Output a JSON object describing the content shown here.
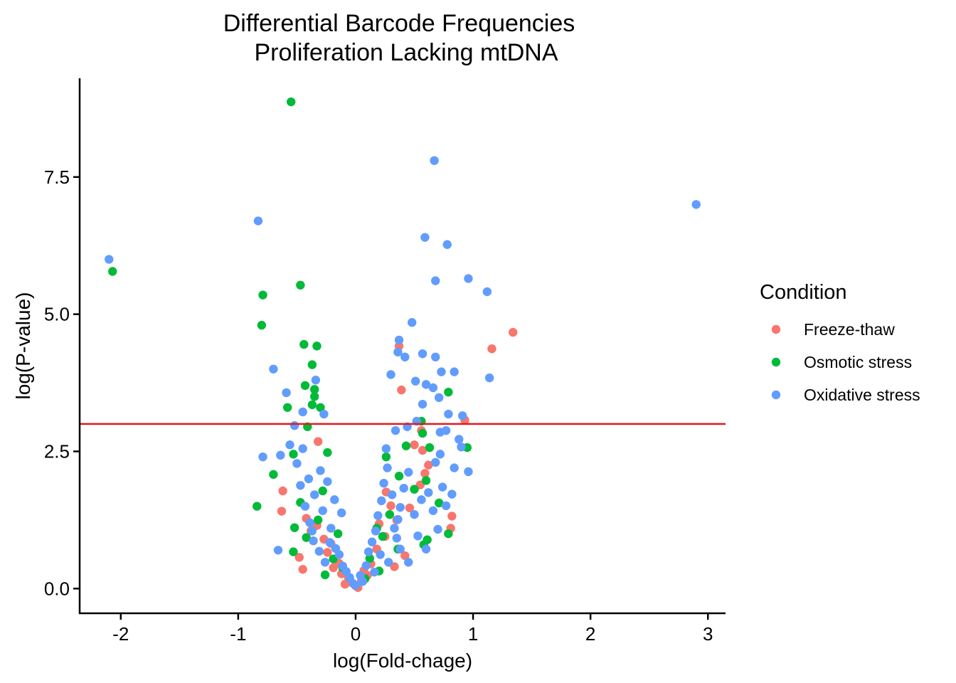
{
  "chart_data": {
    "type": "scatter",
    "title_line1": "Differential Barcode Frequencies",
    "title_line2": "Proliferation Lacking mtDNA",
    "xlabel": "log(Fold-chage)",
    "ylabel": "log(P-value)",
    "xlim": [
      -2.35,
      3.15
    ],
    "ylim": [
      -0.45,
      9.3
    ],
    "x_ticks": [
      -2,
      -1,
      0,
      1,
      2,
      3
    ],
    "x_tick_labels": [
      "-2",
      "-1",
      "0",
      "1",
      "2",
      "3"
    ],
    "y_ticks": [
      0,
      2.5,
      5,
      7.5
    ],
    "y_tick_labels": [
      "0.0",
      "2.5",
      "5.0",
      "7.5"
    ],
    "threshold_line": {
      "y": 3.0,
      "color": "#e41a1c"
    },
    "legend": {
      "title": "Condition",
      "position": "right"
    },
    "grid": false,
    "series": [
      {
        "name": "Freeze-thaw",
        "color": "#F8766D",
        "points": [
          [
            1.34,
            4.67
          ],
          [
            1.16,
            4.37
          ],
          [
            0.37,
            4.42
          ],
          [
            0.39,
            3.62
          ],
          [
            0.93,
            3.07
          ],
          [
            0.57,
            2.52
          ],
          [
            0.56,
            2.88
          ],
          [
            -0.32,
            2.68
          ],
          [
            0.5,
            2.62
          ],
          [
            0.62,
            2.25
          ],
          [
            0.82,
            1.32
          ],
          [
            0.81,
            1.1
          ],
          [
            -0.62,
            1.78
          ],
          [
            -0.63,
            1.41
          ],
          [
            -0.42,
            1.28
          ],
          [
            -0.48,
            0.57
          ],
          [
            0.59,
            2.1
          ],
          [
            0.26,
            1.76
          ],
          [
            0.3,
            1.51
          ],
          [
            0.2,
            1.18
          ],
          [
            -0.38,
            1.05
          ],
          [
            -0.27,
            0.9
          ],
          [
            -0.24,
            0.66
          ],
          [
            -0.14,
            0.46
          ],
          [
            -0.12,
            0.27
          ],
          [
            -0.06,
            0.19
          ],
          [
            0.05,
            0.16
          ],
          [
            0.1,
            0.24
          ],
          [
            0.13,
            0.45
          ],
          [
            0.18,
            0.72
          ],
          [
            0.25,
            0.95
          ],
          [
            0.35,
            1.25
          ],
          [
            -0.19,
            0.38
          ],
          [
            -0.09,
            0.08
          ],
          [
            0.02,
            0.02
          ],
          [
            0.0,
            0.05
          ],
          [
            -0.04,
            0.12
          ],
          [
            0.07,
            0.33
          ],
          [
            0.46,
            1.47
          ],
          [
            0.55,
            1.89
          ],
          [
            -0.33,
            1.15
          ],
          [
            -0.21,
            0.82
          ],
          [
            0.42,
            0.6
          ],
          [
            0.33,
            0.4
          ],
          [
            -0.45,
            0.35
          ]
        ]
      },
      {
        "name": "Osmotic stress",
        "color": "#00BA38",
        "points": [
          [
            -0.55,
            8.87
          ],
          [
            -2.07,
            5.78
          ],
          [
            -0.79,
            5.35
          ],
          [
            -0.8,
            4.8
          ],
          [
            -0.47,
            5.53
          ],
          [
            -0.44,
            4.45
          ],
          [
            -0.33,
            4.42
          ],
          [
            -0.37,
            4.08
          ],
          [
            -0.43,
            3.7
          ],
          [
            -0.35,
            3.63
          ],
          [
            -0.35,
            3.5
          ],
          [
            -0.37,
            3.35
          ],
          [
            -0.58,
            3.3
          ],
          [
            -0.3,
            3.3
          ],
          [
            0.79,
            3.58
          ],
          [
            0.56,
            3.05
          ],
          [
            0.57,
            2.83
          ],
          [
            0.95,
            2.57
          ],
          [
            0.63,
            2.57
          ],
          [
            -0.41,
            2.95
          ],
          [
            -0.53,
            2.45
          ],
          [
            -0.24,
            2.48
          ],
          [
            -0.7,
            2.08
          ],
          [
            -0.84,
            1.5
          ],
          [
            0.6,
            1.97
          ],
          [
            0.5,
            1.81
          ],
          [
            0.37,
            2.05
          ],
          [
            0.26,
            2.4
          ],
          [
            -0.47,
            1.57
          ],
          [
            -0.52,
            1.11
          ],
          [
            -0.53,
            0.67
          ],
          [
            -0.42,
            0.93
          ],
          [
            -0.19,
            0.54
          ],
          [
            -0.11,
            0.38
          ],
          [
            0.58,
            0.8
          ],
          [
            0.61,
            0.89
          ],
          [
            0.36,
            0.72
          ],
          [
            0.23,
            0.95
          ],
          [
            0.18,
            1.1
          ],
          [
            0.29,
            1.35
          ],
          [
            0.12,
            0.55
          ],
          [
            -0.28,
            1.78
          ],
          [
            -0.32,
            1.25
          ],
          [
            -0.15,
            1.0
          ],
          [
            0.43,
            2.6
          ],
          [
            0.71,
            1.56
          ],
          [
            0.79,
            1.0
          ],
          [
            -0.26,
            0.25
          ],
          [
            0.08,
            0.18
          ],
          [
            0.2,
            0.32
          ]
        ]
      },
      {
        "name": "Oxidative stress",
        "color": "#619CFF",
        "points": [
          [
            0.67,
            7.8
          ],
          [
            2.9,
            7.0
          ],
          [
            -0.83,
            6.7
          ],
          [
            -2.1,
            6.0
          ],
          [
            0.59,
            6.4
          ],
          [
            0.78,
            6.27
          ],
          [
            0.68,
            5.61
          ],
          [
            0.96,
            5.65
          ],
          [
            1.12,
            5.41
          ],
          [
            0.48,
            4.85
          ],
          [
            0.37,
            4.53
          ],
          [
            1.14,
            3.84
          ],
          [
            0.68,
            4.22
          ],
          [
            0.57,
            4.28
          ],
          [
            0.73,
            3.95
          ],
          [
            0.84,
            3.95
          ],
          [
            -0.7,
            4.0
          ],
          [
            -0.59,
            3.57
          ],
          [
            0.36,
            4.31
          ],
          [
            0.42,
            4.22
          ],
          [
            0.3,
            3.9
          ],
          [
            0.51,
            3.78
          ],
          [
            0.6,
            3.72
          ],
          [
            0.66,
            3.66
          ],
          [
            -0.34,
            3.8
          ],
          [
            -0.45,
            3.22
          ],
          [
            -0.27,
            3.18
          ],
          [
            0.71,
            3.48
          ],
          [
            0.79,
            3.18
          ],
          [
            0.91,
            3.15
          ],
          [
            0.57,
            3.36
          ],
          [
            -0.52,
            2.97
          ],
          [
            -0.56,
            2.62
          ],
          [
            -0.64,
            2.43
          ],
          [
            -0.79,
            2.4
          ],
          [
            0.88,
            2.72
          ],
          [
            0.9,
            2.58
          ],
          [
            0.96,
            2.13
          ],
          [
            0.72,
            2.85
          ],
          [
            0.68,
            2.3
          ],
          [
            0.77,
            2.88
          ],
          [
            -0.66,
            0.7
          ],
          [
            -0.35,
            1.71
          ],
          [
            -0.4,
            2.0
          ],
          [
            -0.43,
            1.5
          ],
          [
            -0.39,
            1.2
          ],
          [
            -0.36,
            0.87
          ],
          [
            -0.31,
            0.68
          ],
          [
            -0.28,
            1.42
          ],
          [
            -0.26,
            0.48
          ],
          [
            -0.24,
            1.95
          ],
          [
            -0.21,
            1.1
          ],
          [
            -0.17,
            0.73
          ],
          [
            -0.14,
            0.62
          ],
          [
            -0.11,
            0.41
          ],
          [
            -0.08,
            0.31
          ],
          [
            -0.05,
            0.2
          ],
          [
            0.04,
            0.24
          ],
          [
            0.09,
            0.42
          ],
          [
            0.11,
            0.67
          ],
          [
            0.14,
            0.85
          ],
          [
            0.17,
            1.05
          ],
          [
            0.19,
            1.33
          ],
          [
            0.22,
            1.6
          ],
          [
            0.24,
            1.92
          ],
          [
            0.27,
            2.2
          ],
          [
            0.31,
            1.71
          ],
          [
            0.33,
            1.1
          ],
          [
            0.35,
            0.92
          ],
          [
            0.38,
            1.48
          ],
          [
            0.41,
            1.83
          ],
          [
            0.45,
            2.12
          ],
          [
            0.5,
            1.35
          ],
          [
            0.53,
            0.96
          ],
          [
            0.56,
            1.62
          ],
          [
            0.62,
            1.75
          ],
          [
            0.66,
            1.42
          ],
          [
            0.7,
            1.08
          ],
          [
            0.74,
            1.85
          ],
          [
            0.77,
            1.51
          ],
          [
            0.45,
            0.48
          ],
          [
            0.38,
            0.72
          ],
          [
            -0.47,
            1.88
          ],
          [
            -0.5,
            2.28
          ],
          [
            -0.45,
            2.55
          ],
          [
            -0.22,
            0.84
          ],
          [
            -0.3,
            2.15
          ],
          [
            0.28,
            0.48
          ],
          [
            0.21,
            0.62
          ],
          [
            0.16,
            0.3
          ],
          [
            -0.02,
            0.09
          ],
          [
            0.0,
            0.06
          ],
          [
            -0.12,
            1.38
          ],
          [
            -0.18,
            1.62
          ],
          [
            0.26,
            2.55
          ],
          [
            0.34,
            2.88
          ],
          [
            0.44,
            2.95
          ],
          [
            0.52,
            3.05
          ],
          [
            0.36,
            1.26
          ],
          [
            -0.37,
            1.05
          ],
          [
            0.06,
            0.13
          ],
          [
            0.6,
            0.72
          ],
          [
            0.72,
            2.45
          ],
          [
            0.84,
            2.2
          ],
          [
            0.82,
            1.72
          ]
        ]
      }
    ]
  }
}
